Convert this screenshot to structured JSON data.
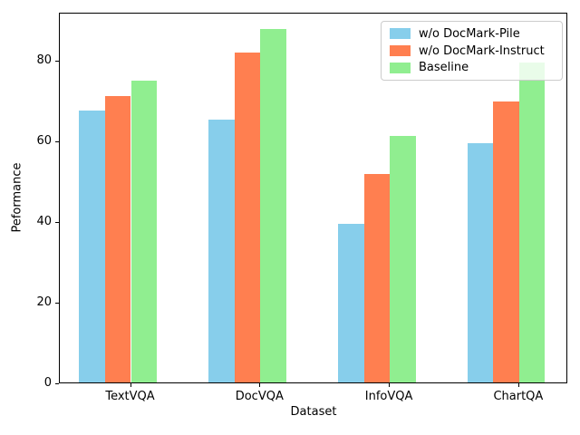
{
  "chart_data": {
    "type": "bar",
    "title": "",
    "xlabel": "Dataset",
    "ylabel": "Peformance",
    "categories": [
      "TextVQA",
      "DocVQA",
      "InfoVQA",
      "ChartQA"
    ],
    "series": [
      {
        "name": "w/o DocMark-Pile",
        "color": "#87CEEB",
        "values": [
          67.5,
          65.3,
          39.3,
          59.4
        ]
      },
      {
        "name": "w/o DocMark-Instruct",
        "color": "#FF7F50",
        "values": [
          71.0,
          81.8,
          51.8,
          69.8
        ]
      },
      {
        "name": "Baseline",
        "color": "#90EE90",
        "values": [
          74.8,
          87.8,
          61.2,
          79.5
        ]
      }
    ],
    "yticks": [
      "0",
      "20",
      "40",
      "60",
      "80"
    ],
    "ytick_values": [
      0,
      20,
      40,
      60,
      80
    ],
    "ylim": [
      0,
      92.0
    ],
    "legend_position": "upper right",
    "grid": false,
    "bar_group_order_note": "xtick sits at boundary between 2nd and 3rd bar of each group"
  }
}
